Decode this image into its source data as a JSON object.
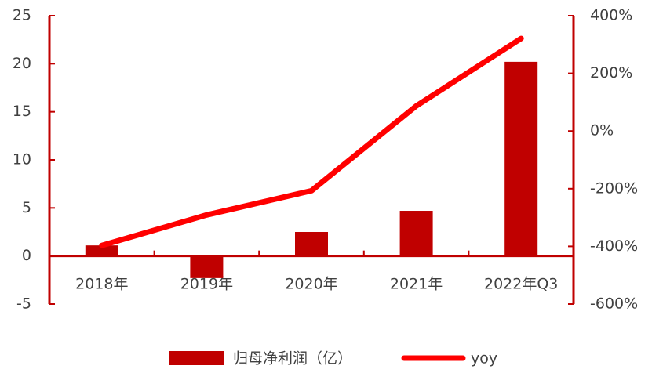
{
  "chart_data": {
    "type": "bar",
    "categories": [
      "2018年",
      "2019年",
      "2020年",
      "2021年",
      "2022年Q3"
    ],
    "series": [
      {
        "name": "归母净利润（亿）",
        "type": "bar",
        "color": "#c00000",
        "values": [
          1.1,
          -2.3,
          2.5,
          4.7,
          20.2
        ]
      },
      {
        "name": "yoy",
        "type": "line",
        "axis": "y2",
        "color": "#ff0000",
        "values": [
          -397,
          -291,
          -207,
          87,
          321
        ]
      }
    ],
    "ylim": [
      -5,
      25
    ],
    "yticks": [
      -5,
      0,
      5,
      10,
      15,
      20,
      25
    ],
    "y2lim": [
      -600,
      400
    ],
    "y2ticks": [
      {
        "value": -600,
        "label": "-600%"
      },
      {
        "value": -400,
        "label": "-400%"
      },
      {
        "value": -200,
        "label": "-200%"
      },
      {
        "value": 0,
        "label": "0%"
      },
      {
        "value": 200,
        "label": "200%"
      },
      {
        "value": 400,
        "label": "400%"
      }
    ],
    "axis_color": "#c00000",
    "legend": "bottom"
  }
}
